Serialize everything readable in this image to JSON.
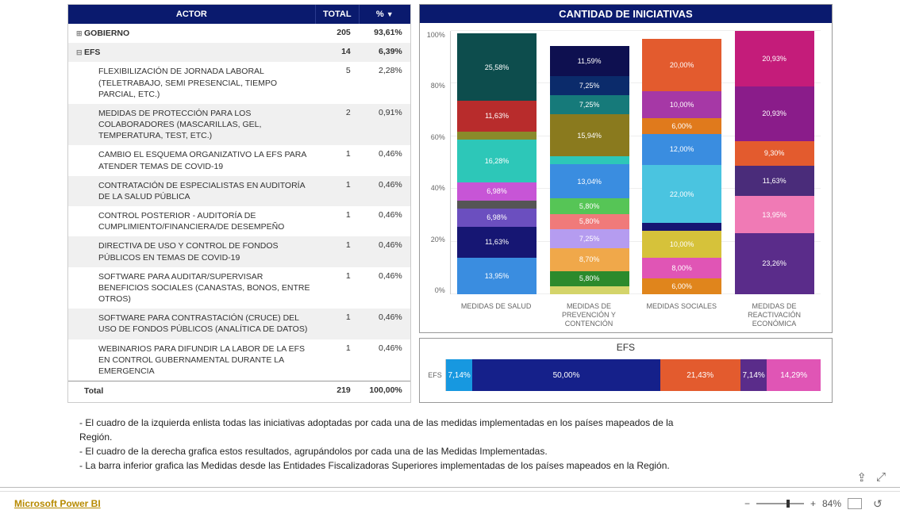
{
  "table": {
    "headers": {
      "actor": "ACTOR",
      "total": "TOTAL",
      "pct": "%"
    },
    "rows": [
      {
        "type": "group",
        "exp": "⊞",
        "label": "GOBIERNO",
        "total": "205",
        "pct": "93,61%",
        "bold": true
      },
      {
        "type": "group",
        "exp": "⊟",
        "label": "EFS",
        "total": "14",
        "pct": "6,39%",
        "bold": true,
        "alt": true
      },
      {
        "type": "child",
        "label": "FLEXIBILIZACIÓN DE JORNADA LABORAL (TELETRABAJO, SEMI PRESENCIAL, TIEMPO PARCIAL, ETC.)",
        "total": "5",
        "pct": "2,28%"
      },
      {
        "type": "child",
        "label": "MEDIDAS DE PROTECCIÓN PARA LOS COLABORADORES (MASCARILLAS, GEL, TEMPERATURA, TEST, ETC.)",
        "total": "2",
        "pct": "0,91%",
        "alt": true
      },
      {
        "type": "child",
        "label": "CAMBIO EL ESQUEMA ORGANIZATIVO LA EFS PARA ATENDER TEMAS DE COVID-19",
        "total": "1",
        "pct": "0,46%"
      },
      {
        "type": "child",
        "label": "CONTRATACIÓN DE ESPECIALISTAS EN AUDITORÍA DE LA SALUD PÚBLICA",
        "total": "1",
        "pct": "0,46%",
        "alt": true
      },
      {
        "type": "child",
        "label": "CONTROL POSTERIOR - AUDITORÍA DE CUMPLIMIENTO/FINANCIERA/DE DESEMPEÑO",
        "total": "1",
        "pct": "0,46%"
      },
      {
        "type": "child",
        "label": "DIRECTIVA DE USO Y CONTROL DE FONDOS PÚBLICOS EN TEMAS DE COVID-19",
        "total": "1",
        "pct": "0,46%",
        "alt": true
      },
      {
        "type": "child",
        "label": "SOFTWARE PARA AUDITAR/SUPERVISAR BENEFICIOS SOCIALES (CANASTAS, BONOS, ENTRE OTROS)",
        "total": "1",
        "pct": "0,46%"
      },
      {
        "type": "child",
        "label": "SOFTWARE PARA CONTRASTACIÓN (CRUCE) DEL USO DE FONDOS PÚBLICOS (ANALÍTICA DE DATOS)",
        "total": "1",
        "pct": "0,46%",
        "alt": true
      },
      {
        "type": "child",
        "label": "WEBINARIOS PARA DIFUNDIR LA LABOR DE LA EFS EN CONTROL GUBERNAMENTAL DURANTE LA EMERGENCIA",
        "total": "1",
        "pct": "0,46%"
      }
    ],
    "totalRow": {
      "label": "Total",
      "total": "219",
      "pct": "100,00%"
    }
  },
  "chart": {
    "title": "CANTIDAD DE INICIATIVAS",
    "ytick_labels": [
      "100%",
      "80%",
      "60%",
      "40%",
      "20%",
      "0%"
    ],
    "columns": [
      {
        "label": "MEDIDAS DE SALUD",
        "segments": [
          {
            "pct": 25.58,
            "label": "25,58%",
            "color": "#0d4d4d"
          },
          {
            "pct": 11.63,
            "label": "11,63%",
            "color": "#b82c2c"
          },
          {
            "pct": 3,
            "label": "",
            "color": "#8a8a2a"
          },
          {
            "pct": 16.28,
            "label": "16,28%",
            "color": "#2dc7b8"
          },
          {
            "pct": 6.98,
            "label": "6,98%",
            "color": "#c755d6"
          },
          {
            "pct": 3,
            "label": "",
            "color": "#555"
          },
          {
            "pct": 6.98,
            "label": "6,98%",
            "color": "#6b4fbf"
          },
          {
            "pct": 11.63,
            "label": "11,63%",
            "color": "#161673"
          },
          {
            "pct": 13.95,
            "label": "13,95%",
            "color": "#3a8de0"
          }
        ]
      },
      {
        "label": "MEDIDAS DE PREVENCIÓN Y CONTENCIÓN",
        "segments": [
          {
            "pct": 11.59,
            "label": "11,59%",
            "color": "#0e1050"
          },
          {
            "pct": 7.25,
            "label": "7,25%",
            "color": "#0b2b6b"
          },
          {
            "pct": 7.25,
            "label": "7,25%",
            "color": "#167a7a"
          },
          {
            "pct": 15.94,
            "label": "15,94%",
            "color": "#8a7a1e"
          },
          {
            "pct": 3,
            "label": "",
            "color": "#2dc7b8"
          },
          {
            "pct": 13.04,
            "label": "13,04%",
            "color": "#3a8de0"
          },
          {
            "pct": 5.8,
            "label": "5,80%",
            "color": "#56c556"
          },
          {
            "pct": 5.8,
            "label": "5,80%",
            "color": "#f07a7a"
          },
          {
            "pct": 7.25,
            "label": "7,25%",
            "color": "#b59cf0"
          },
          {
            "pct": 8.7,
            "label": "8,70%",
            "color": "#f0a84a"
          },
          {
            "pct": 5.8,
            "label": "5,80%",
            "color": "#2c8a2c"
          },
          {
            "pct": 3,
            "label": "",
            "color": "#d4d46a"
          }
        ]
      },
      {
        "label": "MEDIDAS SOCIALES",
        "segments": [
          {
            "pct": 20.0,
            "label": "20,00%",
            "color": "#e35b2e"
          },
          {
            "pct": 10.0,
            "label": "10,00%",
            "color": "#a638a6"
          },
          {
            "pct": 6.0,
            "label": "6,00%",
            "color": "#e07a1c"
          },
          {
            "pct": 12.0,
            "label": "12,00%",
            "color": "#3a8de0"
          },
          {
            "pct": 22.0,
            "label": "22,00%",
            "color": "#4ac4e0"
          },
          {
            "pct": 3,
            "label": "",
            "color": "#161673"
          },
          {
            "pct": 10.0,
            "label": "10,00%",
            "color": "#d6c23a"
          },
          {
            "pct": 8.0,
            "label": "8,00%",
            "color": "#e055b5"
          },
          {
            "pct": 6.0,
            "label": "6,00%",
            "color": "#e0851c"
          }
        ]
      },
      {
        "label": "MEDIDAS DE REACTIVACIÓN ECONÓMICA",
        "segments": [
          {
            "pct": 20.93,
            "label": "20,93%",
            "color": "#c41c7a"
          },
          {
            "pct": 20.93,
            "label": "20,93%",
            "color": "#8a1c8a"
          },
          {
            "pct": 9.3,
            "label": "9,30%",
            "color": "#e35b2e"
          },
          {
            "pct": 11.63,
            "label": "11,63%",
            "color": "#4a2c7a"
          },
          {
            "pct": 13.95,
            "label": "13,95%",
            "color": "#f07ab5"
          },
          {
            "pct": 23.26,
            "label": "23,26%",
            "color": "#5a2c8a"
          }
        ]
      }
    ]
  },
  "efs": {
    "title": "EFS",
    "ylabel": "EFS",
    "segments": [
      {
        "pct": 7.14,
        "label": "7,14%",
        "color": "#1798e0"
      },
      {
        "pct": 50.0,
        "label": "50,00%",
        "color": "#15208a"
      },
      {
        "pct": 21.43,
        "label": "21,43%",
        "color": "#e35b2e"
      },
      {
        "pct": 7.14,
        "label": "7,14%",
        "color": "#5a2c8a"
      },
      {
        "pct": 14.29,
        "label": "14,29%",
        "color": "#e055b5"
      }
    ]
  },
  "description": {
    "line1": "- El cuadro de la izquierda enlista todas las iniciativas adoptadas por cada una de las medidas implementadas en los países mapeados de la",
    "line1b": "  Región.",
    "line2": "- El cuadro de la derecha grafica estos resultados, agrupándolos por cada una de las Medidas Implementadas.",
    "line3": "- La barra inferior grafica las Medidas desde las Entidades Fiscalizadoras Superiores implementadas de los países mapeados en la Región."
  },
  "footer": {
    "logo": "Microsoft Power BI",
    "zoom": "84%"
  }
}
